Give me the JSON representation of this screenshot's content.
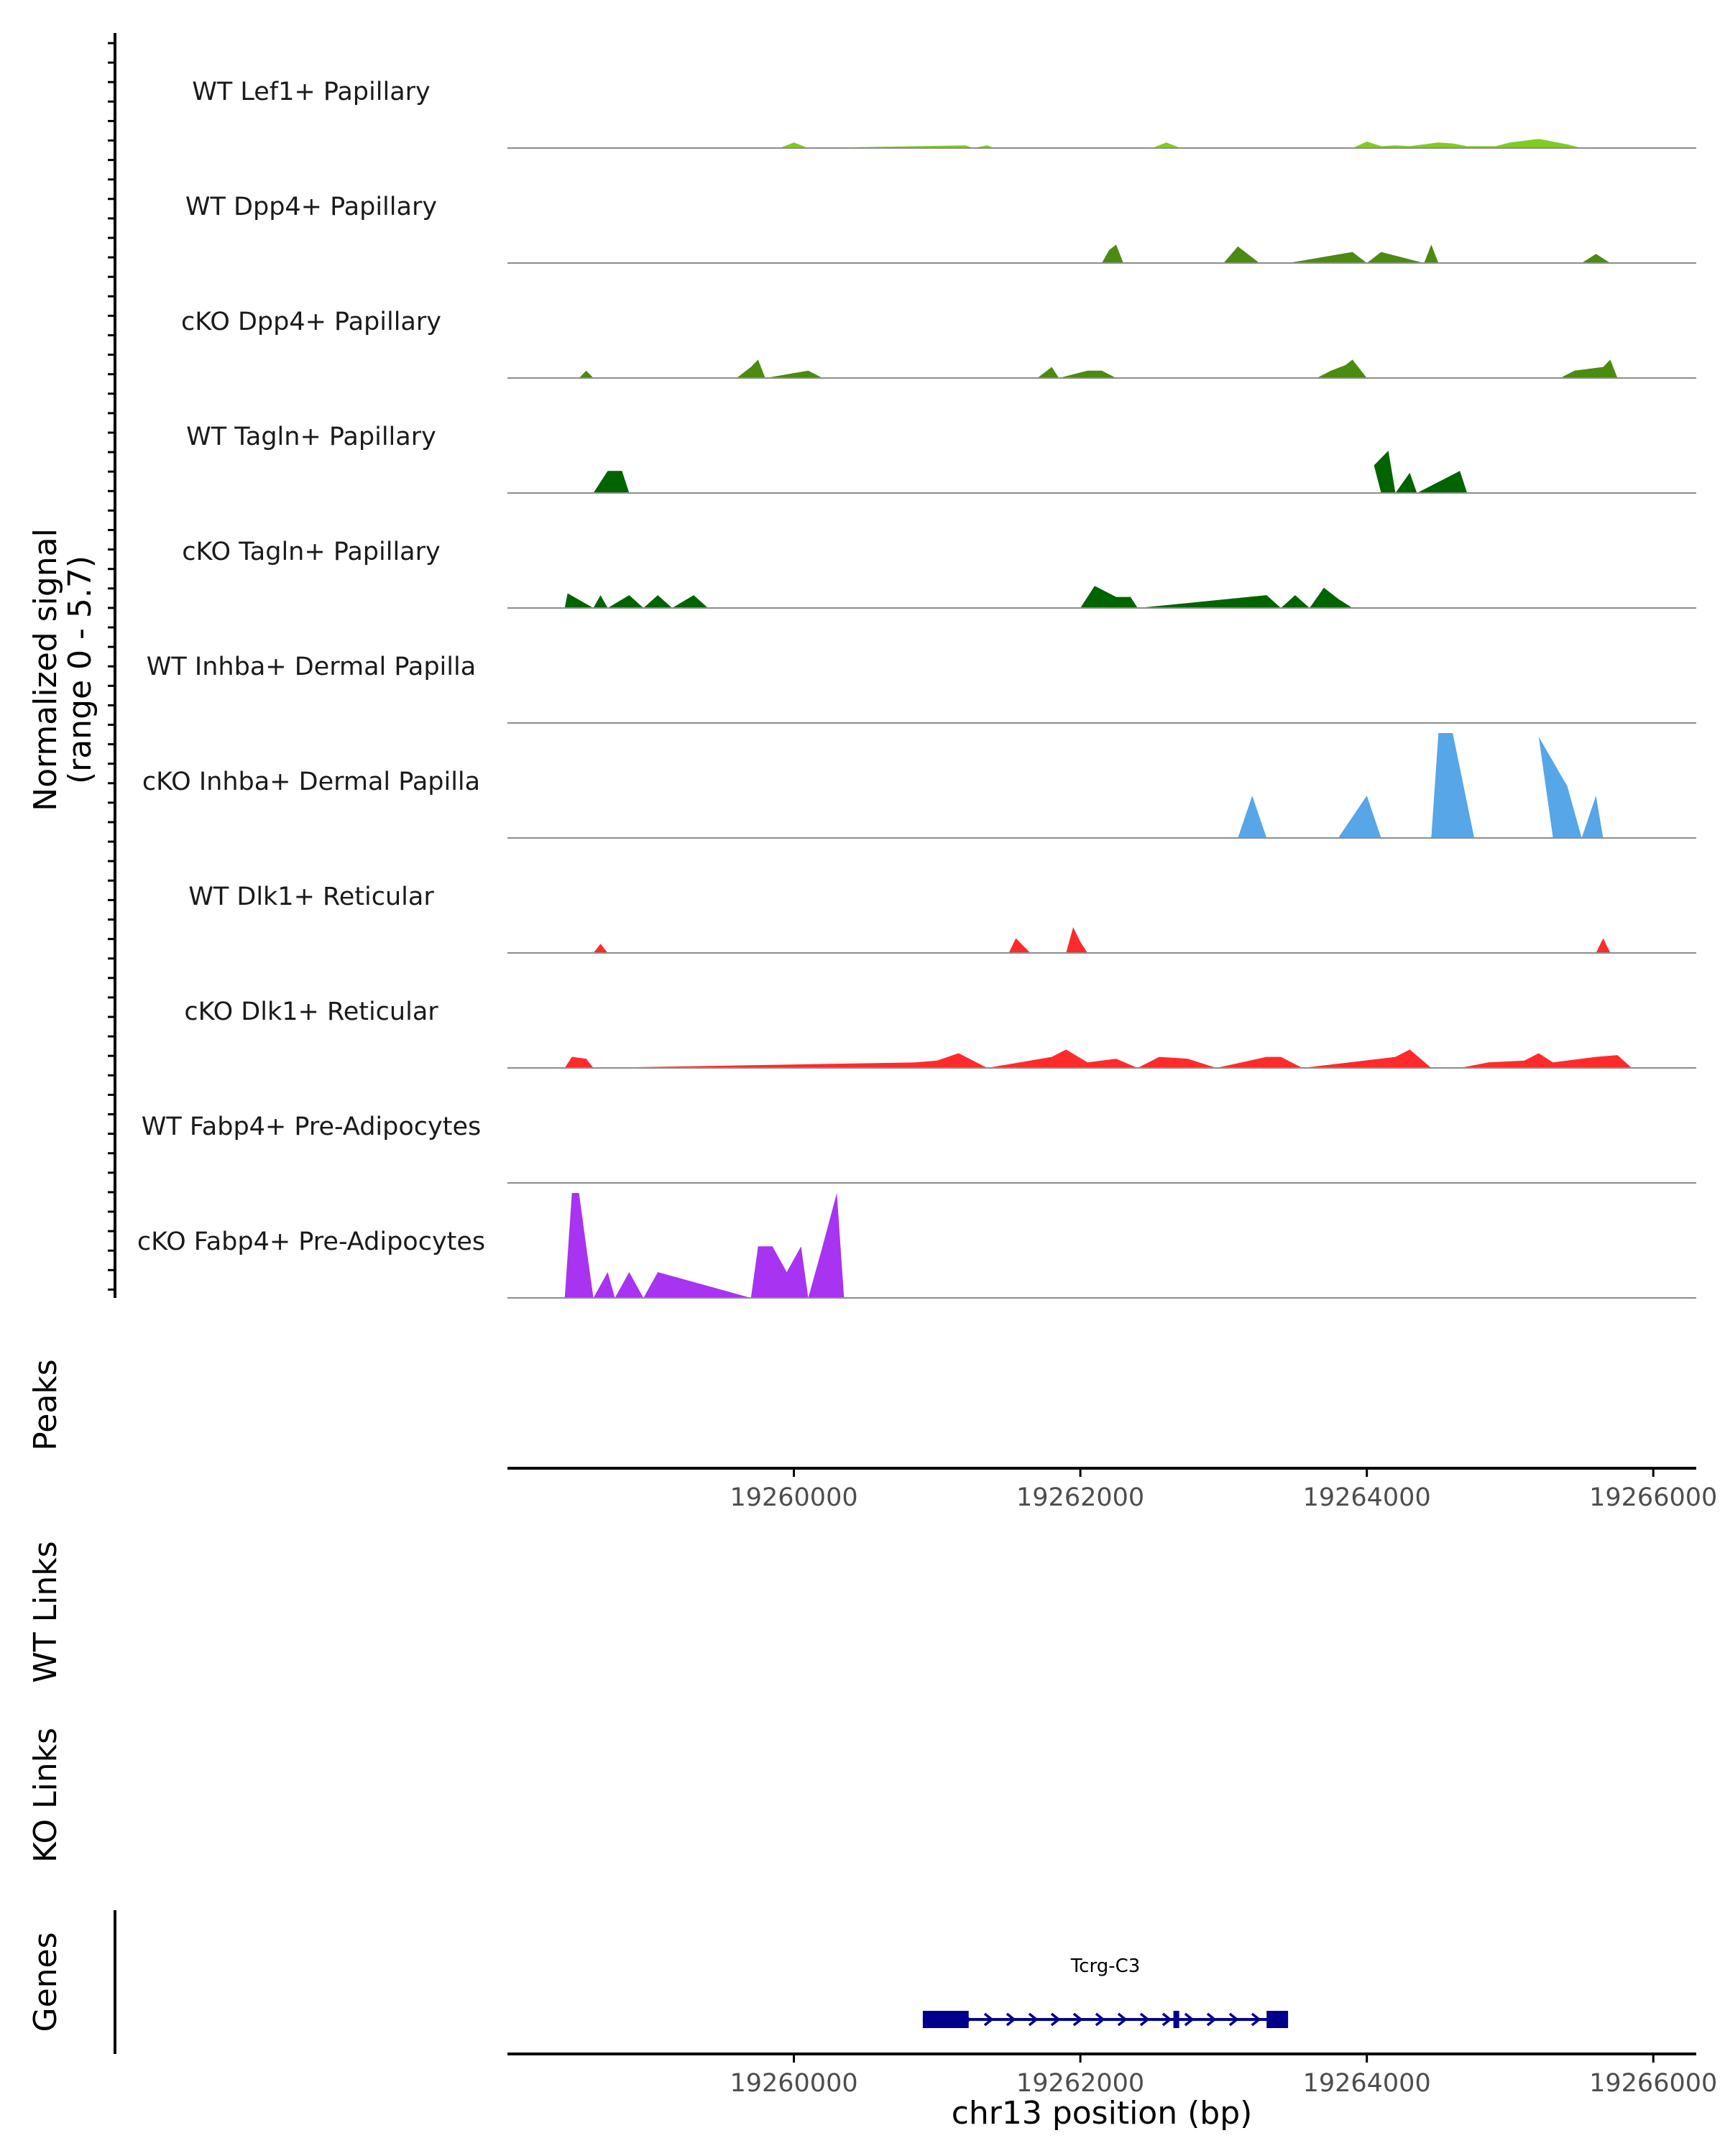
{
  "chart_data": {
    "type": "area",
    "chromosome": "chr13",
    "xlabel": "chr13 position (bp)",
    "xlim": [
      19258000,
      19266300
    ],
    "x_ticks": [
      19260000,
      19262000,
      19264000,
      19266000
    ],
    "x_tick_labels": [
      "19260000",
      "19262000",
      "19264000",
      "19266000"
    ],
    "coverage": {
      "ylabel_line1": "Normalized signal",
      "ylabel_line2": "(range 0 - 5.7)",
      "ylim": [
        0,
        5.7
      ],
      "series": [
        {
          "name": "WT Lef1+ Papillary",
          "color": "#7fcd1f",
          "x": [
            19259900,
            19260000,
            19260100,
            19261200,
            19261250,
            19261350,
            19261400,
            19262500,
            19262600,
            19262700,
            19263900,
            19264000,
            19264100,
            19264200,
            19264300,
            19264400,
            19264500,
            19264600,
            19264700,
            19264900,
            19265000,
            19265200,
            19265400,
            19265500
          ],
          "y": [
            0,
            0.3,
            0,
            0.15,
            0,
            0.15,
            0,
            0,
            0.3,
            0,
            0,
            0.35,
            0.1,
            0.15,
            0.1,
            0.2,
            0.3,
            0.25,
            0.1,
            0.1,
            0.3,
            0.5,
            0.2,
            0
          ]
        },
        {
          "name": "WT Dpp4+ Papillary",
          "color": "#4b8b0f",
          "x": [
            19262150,
            19262200,
            19262250,
            19262300,
            19263000,
            19263100,
            19263250,
            19263450,
            19263900,
            19264000,
            19264100,
            19264400,
            19264450,
            19264500,
            19265500,
            19265600,
            19265700
          ],
          "y": [
            0,
            0.7,
            1.0,
            0,
            0,
            0.9,
            0,
            0,
            0.6,
            0,
            0.6,
            0,
            1.0,
            0,
            0,
            0.5,
            0
          ]
        },
        {
          "name": "cKO Dpp4+ Papillary",
          "color": "#4b8b0f",
          "x": [
            19258500,
            19258550,
            19258600,
            19259600,
            19259700,
            19259750,
            19259800,
            19260100,
            19260200,
            19261700,
            19261800,
            19261850,
            19262050,
            19262150,
            19262250,
            19263650,
            19263750,
            19263850,
            19263900,
            19264000,
            19265350,
            19265450,
            19265650,
            19265700,
            19265750
          ],
          "y": [
            0,
            0.4,
            0,
            0,
            0.6,
            1.0,
            0,
            0.4,
            0,
            0,
            0.6,
            0,
            0.4,
            0.4,
            0,
            0,
            0.4,
            0.7,
            1.0,
            0,
            0,
            0.4,
            0.6,
            1.0,
            0
          ]
        },
        {
          "name": "WT Tagln+ Papillary",
          "color": "#006400",
          "x": [
            19258600,
            19258700,
            19258800,
            19258850,
            19264100,
            19264050,
            19264150,
            19264200,
            19264300,
            19264350,
            19264650,
            19264700
          ],
          "y": [
            0,
            1.2,
            1.2,
            0,
            0,
            1.5,
            2.3,
            0,
            1.1,
            0,
            1.2,
            0
          ]
        },
        {
          "name": "cKO Tagln+ Papillary",
          "color": "#006400",
          "x": [
            19258400,
            19258420,
            19258600,
            19258650,
            19258700,
            19258850,
            19258950,
            19259050,
            19259150,
            19259300,
            19259400,
            19262000,
            19262100,
            19262250,
            19262350,
            19262400,
            19263300,
            19263400,
            19263500,
            19263600,
            19263700,
            19263800,
            19263900
          ],
          "y": [
            0,
            0.8,
            0,
            0.7,
            0,
            0.7,
            0,
            0.7,
            0,
            0.7,
            0,
            0,
            1.2,
            0.6,
            0.6,
            0,
            0.7,
            0,
            0.7,
            0,
            1.1,
            0.5,
            0
          ]
        },
        {
          "name": "WT Inhba+ Dermal Papilla",
          "color": "#56a6e8",
          "x": [
            19258000,
            19266300
          ],
          "y": [
            0,
            0
          ]
        },
        {
          "name": "cKO Inhba+ Dermal Papilla",
          "color": "#56a6e8",
          "x": [
            19263100,
            19263200,
            19263300,
            19263800,
            19264000,
            19264100,
            19264450,
            19264500,
            19264600,
            19264750,
            19265300,
            19265200,
            19265400,
            19265500,
            19265600,
            19265650
          ],
          "y": [
            0,
            2.3,
            0,
            0,
            2.3,
            0,
            0,
            5.7,
            5.7,
            0,
            0,
            5.5,
            2.8,
            0,
            2.3,
            0
          ]
        },
        {
          "name": "WT Dlk1+ Reticular",
          "color": "#ff2a2a",
          "x": [
            19258600,
            19258650,
            19258700,
            19261500,
            19261550,
            19261650,
            19261900,
            19261950,
            19262000,
            19262050,
            19265600,
            19265650,
            19265700
          ],
          "y": [
            0,
            0.5,
            0,
            0,
            0.8,
            0,
            0,
            1.4,
            0.6,
            0,
            0,
            0.8,
            0
          ]
        },
        {
          "name": "cKO Dlk1+ Reticular",
          "color": "#ff2a2a",
          "x": [
            19258400,
            19258450,
            19258550,
            19258600,
            19260850,
            19261000,
            19261150,
            19261350,
            19261800,
            19261900,
            19262050,
            19262250,
            19262400,
            19262550,
            19262750,
            19262950,
            19263300,
            19263400,
            19263550,
            19264200,
            19264300,
            19264450,
            19264650,
            19264850,
            19265100,
            19265200,
            19265300,
            19265600,
            19265750,
            19265850
          ],
          "y": [
            0,
            0.6,
            0.5,
            0,
            0.3,
            0.4,
            0.8,
            0,
            0.6,
            1.0,
            0.3,
            0.5,
            0,
            0.6,
            0.5,
            0,
            0.6,
            0.6,
            0,
            0.6,
            1.0,
            0,
            0,
            0.3,
            0.4,
            0.8,
            0.3,
            0.6,
            0.7,
            0
          ]
        },
        {
          "name": "WT Fabp4+ Pre-Adipocytes",
          "color": "#a833f0",
          "x": [
            19258000,
            19266300
          ],
          "y": [
            0,
            0
          ]
        },
        {
          "name": "cKO Fabp4+ Pre-Adipocytes",
          "color": "#a833f0",
          "x": [
            19258400,
            19258450,
            19258500,
            19258550,
            19258600,
            19258700,
            19258750,
            19258850,
            19258950,
            19259050,
            19259700,
            19259750,
            19259850,
            19259950,
            19260050,
            19260100,
            19260200,
            19260300,
            19260350
          ],
          "y": [
            0,
            5.7,
            5.7,
            2.8,
            0,
            1.4,
            0,
            1.4,
            0,
            1.4,
            0,
            2.8,
            2.8,
            1.4,
            2.8,
            0,
            2.8,
            5.7,
            0
          ]
        }
      ]
    },
    "tracks": {
      "peaks_label": "Peaks",
      "wt_links_label": "WT Links",
      "ko_links_label": "KO Links",
      "genes_label": "Genes"
    },
    "gene": {
      "name": "Tcrg-C3",
      "start": 19260900,
      "end": 19263450,
      "strand": "+",
      "color": "#00008b",
      "exons": [
        [
          19260900,
          19261220
        ],
        [
          19262650,
          19262690
        ],
        [
          19263300,
          19263450
        ]
      ]
    }
  }
}
